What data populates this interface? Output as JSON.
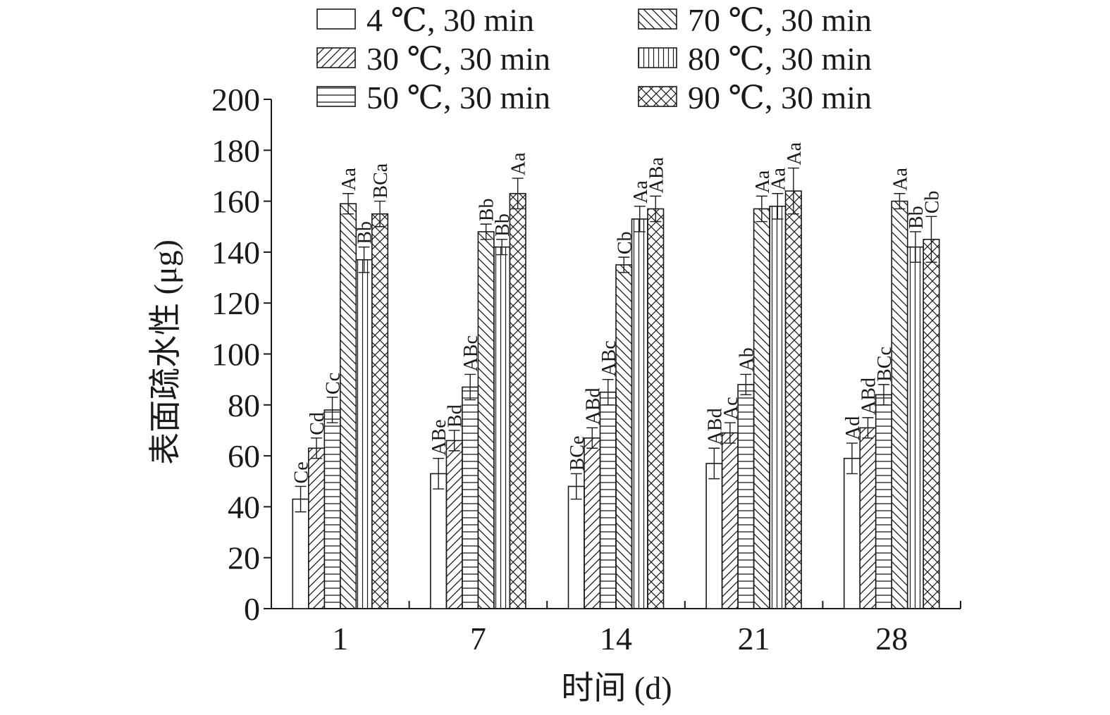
{
  "chart_data": {
    "type": "bar",
    "title": "",
    "xlabel": "时间 (d)",
    "ylabel": "表面疏水性 (μg)",
    "ylim": [
      0,
      200
    ],
    "yticks": [
      "0",
      "20",
      "40",
      "60",
      "80",
      "100",
      "120",
      "140",
      "160",
      "180",
      "200"
    ],
    "categories": [
      "1",
      "7",
      "14",
      "21",
      "28"
    ],
    "grid": false,
    "legend_position": "top",
    "series": [
      {
        "name": "4 ℃, 30 min",
        "pattern": "none",
        "values": [
          43,
          53,
          48,
          57,
          59
        ],
        "errors": [
          5,
          6,
          5,
          6,
          6
        ],
        "labels": [
          "Ce",
          "ABe",
          "BCe",
          "ABd",
          "Ad"
        ]
      },
      {
        "name": "30 ℃, 30 min",
        "pattern": "diag-up",
        "values": [
          63,
          66,
          67,
          69,
          71
        ],
        "errors": [
          4,
          4,
          4,
          4,
          4
        ],
        "labels": [
          "Cd",
          "Bd",
          "ABd",
          "Ac",
          "ABd"
        ]
      },
      {
        "name": "50 ℃, 30 min",
        "pattern": "horizontal",
        "values": [
          78,
          87,
          85,
          88,
          84
        ],
        "errors": [
          5,
          5,
          5,
          4,
          4
        ],
        "labels": [
          "Cc",
          "ABc",
          "ABc",
          "Ab",
          "BCc"
        ]
      },
      {
        "name": "70 ℃, 30 min",
        "pattern": "diag-down",
        "values": [
          159,
          148,
          135,
          157,
          160
        ],
        "errors": [
          4,
          3,
          3,
          5,
          3
        ],
        "labels": [
          "Aa",
          "Bb",
          "Cb",
          "Aa",
          "Aa"
        ]
      },
      {
        "name": "80 ℃, 30 min",
        "pattern": "vertical",
        "values": [
          137,
          142,
          153,
          158,
          142
        ],
        "errors": [
          5,
          3,
          5,
          5,
          6
        ],
        "labels": [
          "Bb",
          "Bb",
          "Aa",
          "Aa",
          "Bb"
        ]
      },
      {
        "name": "90 ℃, 30 min",
        "pattern": "crosshatch",
        "values": [
          155,
          163,
          157,
          164,
          145
        ],
        "errors": [
          5,
          6,
          5,
          9,
          9
        ],
        "labels": [
          "BCa",
          "Aa",
          "ABa",
          "Aa",
          "Cb"
        ]
      }
    ]
  }
}
